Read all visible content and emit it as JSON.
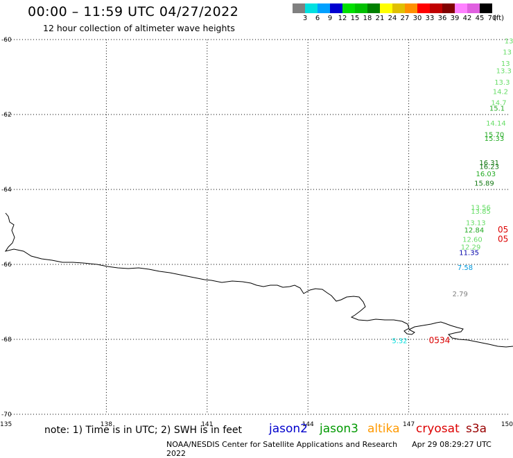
{
  "header": {
    "title": "00:00 – 11:59 UTC 04/27/2022",
    "subtitle": "12 hour collection of altimeter wave heights"
  },
  "legend": {
    "unit": "(ft)",
    "bins": [
      {
        "label": "3",
        "color": "#808080"
      },
      {
        "label": "6",
        "color": "#00e0e0"
      },
      {
        "label": "9",
        "color": "#00a0ff"
      },
      {
        "label": "12",
        "color": "#0000d0"
      },
      {
        "label": "15",
        "color": "#00e000"
      },
      {
        "label": "18",
        "color": "#00c000"
      },
      {
        "label": "21",
        "color": "#008000"
      },
      {
        "label": "24",
        "color": "#ffff00"
      },
      {
        "label": "27",
        "color": "#e0c000"
      },
      {
        "label": "30",
        "color": "#ff9000"
      },
      {
        "label": "33",
        "color": "#ff0000"
      },
      {
        "label": "36",
        "color": "#c00000"
      },
      {
        "label": "39",
        "color": "#800000"
      },
      {
        "label": "42",
        "color": "#ff80ff"
      },
      {
        "label": "45",
        "color": "#e060e0"
      },
      {
        "label": "70",
        "color": "#000000"
      }
    ]
  },
  "map": {
    "lat_range": [
      -70,
      -60
    ],
    "lon_range": [
      135,
      150
    ],
    "lat_ticks": [
      "-60",
      "-62",
      "-64",
      "-66",
      "-68",
      "-70"
    ],
    "lon_ticks": [
      "135",
      "138",
      "141",
      "144",
      "147",
      "150"
    ],
    "gridlines": "dotted"
  },
  "observations": [
    {
      "text": "13",
      "lon": 149.85,
      "lat": -60.1,
      "color": "#66dd66"
    },
    {
      "text": "13",
      "lon": 149.8,
      "lat": -60.4,
      "color": "#66dd66"
    },
    {
      "text": "13",
      "lon": 149.75,
      "lat": -60.7,
      "color": "#66dd66"
    },
    {
      "text": "13.3",
      "lon": 149.6,
      "lat": -60.9,
      "color": "#66dd66"
    },
    {
      "text": "13.3",
      "lon": 149.55,
      "lat": -61.2,
      "color": "#66dd66"
    },
    {
      "text": "14.2",
      "lon": 149.5,
      "lat": -61.45,
      "color": "#66dd66"
    },
    {
      "text": "14.7",
      "lon": 149.45,
      "lat": -61.75,
      "color": "#66dd66"
    },
    {
      "text": "15.1",
      "lon": 149.4,
      "lat": -61.9,
      "color": "#22aa22"
    },
    {
      "text": "14.14",
      "lon": 149.3,
      "lat": -62.3,
      "color": "#66dd66"
    },
    {
      "text": "15.70",
      "lon": 149.25,
      "lat": -62.6,
      "color": "#22aa22"
    },
    {
      "text": "15.33",
      "lon": 149.25,
      "lat": -62.7,
      "color": "#22aa22"
    },
    {
      "text": "16.31",
      "lon": 149.1,
      "lat": -63.35,
      "color": "#117711"
    },
    {
      "text": "16.23",
      "lon": 149.1,
      "lat": -63.45,
      "color": "#117711"
    },
    {
      "text": "16.03",
      "lon": 149.0,
      "lat": -63.65,
      "color": "#22aa22"
    },
    {
      "text": "15.89",
      "lon": 148.95,
      "lat": -63.9,
      "color": "#117711"
    },
    {
      "text": "13.56",
      "lon": 148.85,
      "lat": -64.55,
      "color": "#66dd66"
    },
    {
      "text": "13.85",
      "lon": 148.85,
      "lat": -64.65,
      "color": "#66dd66"
    },
    {
      "text": "13.13",
      "lon": 148.7,
      "lat": -64.95,
      "color": "#66dd66"
    },
    {
      "text": "12.84",
      "lon": 148.65,
      "lat": -65.15,
      "color": "#22aa22"
    },
    {
      "text": "05",
      "lon": 149.65,
      "lat": -65.15,
      "color": "#dd0000"
    },
    {
      "text": "12.60",
      "lon": 148.6,
      "lat": -65.4,
      "color": "#66dd66"
    },
    {
      "text": "05",
      "lon": 149.65,
      "lat": -65.4,
      "color": "#dd0000"
    },
    {
      "text": "12.29",
      "lon": 148.55,
      "lat": -65.6,
      "color": "#66dd66"
    },
    {
      "text": "11.35",
      "lon": 148.5,
      "lat": -65.75,
      "color": "#0000aa"
    },
    {
      "text": "7.58",
      "lon": 148.45,
      "lat": -66.15,
      "color": "#0099dd"
    },
    {
      "text": "2.79",
      "lon": 148.3,
      "lat": -66.85,
      "color": "#808080"
    },
    {
      "text": "5.32",
      "lon": 146.5,
      "lat": -68.1,
      "color": "#00dddd"
    },
    {
      "text": "0534",
      "lon": 147.6,
      "lat": -68.1,
      "color": "#dd0000"
    }
  ],
  "footer": {
    "note": "note: 1) Time is in UTC; 2) SWH is in feet",
    "satellites": [
      {
        "name": "jason2",
        "color": "#0000cc"
      },
      {
        "name": "jason3",
        "color": "#009900"
      },
      {
        "name": "altika",
        "color": "#ff9900"
      },
      {
        "name": "cryosat",
        "color": "#dd0000"
      },
      {
        "name": "s3a",
        "color": "#990000"
      }
    ],
    "credit": "NOAA/NESDIS Center for Satellite Applications and Research",
    "timestamp": "Apr 29 08:29:27 UTC 2022"
  }
}
